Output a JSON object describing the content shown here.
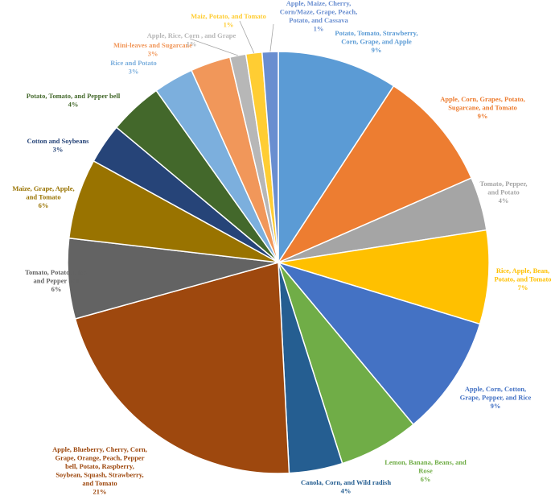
{
  "chart_data": {
    "type": "pie",
    "title": "",
    "slices": [
      {
        "label": [
          "Potato, Tomato, Strawberry,",
          "Corn, Grape, and Apple"
        ],
        "value": 9,
        "display": "9%",
        "color": "#5b9bd5"
      },
      {
        "label": [
          "Apple, Corn, Grapes, Potato,",
          "Sugarcane, and Tomato"
        ],
        "value": 9,
        "display": "9%",
        "color": "#ed7d31"
      },
      {
        "label": [
          "Tomato, Pepper,",
          "and Potato"
        ],
        "value": 4,
        "display": "4%",
        "color": "#a5a5a5"
      },
      {
        "label": [
          "Rice, Apple, Bean,",
          "Potato, and Tomato"
        ],
        "value": 7,
        "display": "7%",
        "color": "#ffc000"
      },
      {
        "label": [
          "Apple, Corn, Cotton,",
          "Grape, Pepper, and Rice"
        ],
        "value": 9,
        "display": "9%",
        "color": "#4472c4"
      },
      {
        "label": [
          "Lemon, Banana, Beans, and",
          "Rose"
        ],
        "value": 6,
        "display": "6%",
        "color": "#70ad47"
      },
      {
        "label": [
          "Canola, Corn, and Wild radish"
        ],
        "value": 4,
        "display": "4%",
        "color": "#255e91"
      },
      {
        "label": [
          "Apple, Blueberry, Cherry, Corn,",
          "Grape, Orange, Peach, Pepper",
          "bell, Potato, Raspberry,",
          "Soybean, Squash, Strawberry,",
          "and Tomato"
        ],
        "value": 21,
        "display": "21%",
        "color": "#9e480e"
      },
      {
        "label": [
          "Tomato, Potato, Rice,",
          "and Pepper bell"
        ],
        "value": 6,
        "display": "6%",
        "color": "#636363"
      },
      {
        "label": [
          "Maize, Grape, Apple,",
          "and Tomato"
        ],
        "value": 6,
        "display": "6%",
        "color": "#997300"
      },
      {
        "label": [
          "Cotton and Soybeans"
        ],
        "value": 3,
        "display": "3%",
        "color": "#264478"
      },
      {
        "label": [
          "Potato, Tomato, and Pepper bell"
        ],
        "value": 4,
        "display": "4%",
        "color": "#43682b"
      },
      {
        "label": [
          "Rice and Potato"
        ],
        "value": 3,
        "display": "3%",
        "color": "#7cafdd"
      },
      {
        "label": [
          "Mini-leaves and Sugarcane"
        ],
        "value": 3,
        "display": "3%",
        "color": "#f1975a"
      },
      {
        "label": [
          "Apple, Rice, Corn , and Grape"
        ],
        "value": 1.2,
        "display": "1%",
        "color": "#b7b7b7"
      },
      {
        "label": [
          "Maiz, Potato, and Tomato"
        ],
        "value": 1.2,
        "display": "1%",
        "color": "#ffcd33"
      },
      {
        "label": [
          "Apple, Maize, Cherry,",
          "Corn/Maze, Grape, Peach,",
          "Potato, and Cassava"
        ],
        "value": 1.2,
        "display": "1%",
        "color": "#698ed0"
      }
    ],
    "legend": "none"
  }
}
